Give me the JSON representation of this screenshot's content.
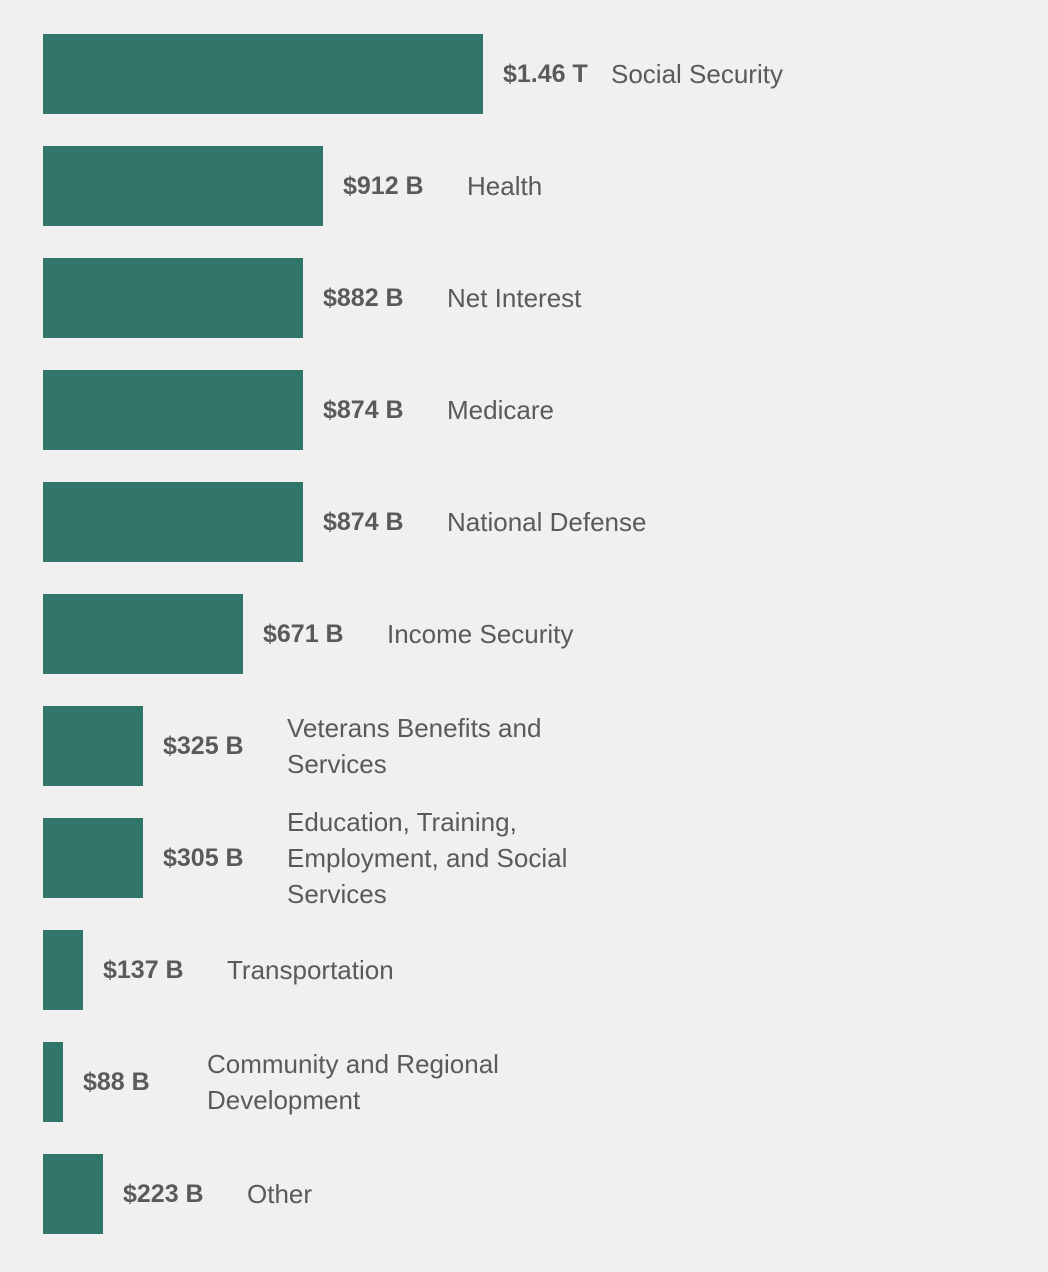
{
  "chart_data": {
    "type": "bar",
    "orientation": "horizontal",
    "bar_color": "#327569",
    "background_color": "#f0f0f0",
    "text_color": "#5a5a5a",
    "categories": [
      "Social Security",
      "Health",
      "Net Interest",
      "Medicare",
      "National Defense",
      "Income Security",
      "Veterans Benefits and Services",
      "Education, Training, Employment, and Social Services",
      "Transportation",
      "Community and Regional Development",
      "Other"
    ],
    "values_billions": [
      1460,
      912,
      882,
      874,
      874,
      671,
      325,
      305,
      137,
      88,
      223
    ],
    "value_labels": [
      "$1.46 T",
      "$912 B",
      "$882 B",
      "$874 B",
      "$874 B",
      "$671 B",
      "$325 B",
      "$305 B",
      "$137 B",
      "$88 B",
      "$223 B"
    ],
    "title": "",
    "xlabel": "",
    "ylabel": ""
  }
}
